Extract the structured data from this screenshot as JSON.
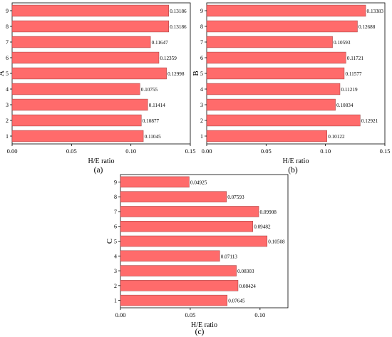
{
  "bar_color": "#ff6b6b",
  "bar_stroke": "#9a3a3a",
  "chart_data": [
    {
      "panel": "(a)",
      "type": "bar",
      "orientation": "horizontal",
      "ylabel": "A",
      "xlabel": "H/E ratio",
      "categories": [
        "1",
        "2",
        "3",
        "4",
        "5",
        "6",
        "7",
        "8",
        "9"
      ],
      "values": [
        0.11045,
        0.10877,
        0.11414,
        0.10755,
        0.12998,
        0.12359,
        0.11647,
        0.13186,
        0.13186
      ],
      "value_labels": [
        "0.11045",
        "0.10877",
        "0.11414",
        "0.10755",
        "0.12998",
        "0.12359",
        "0.11647",
        "0.13186",
        "0.13186"
      ],
      "xlim": [
        0,
        0.15
      ],
      "xticks": [
        "0.00",
        "0.05",
        "0.10",
        "0.15"
      ],
      "grid": false
    },
    {
      "panel": "(b)",
      "type": "bar",
      "orientation": "horizontal",
      "ylabel": "B",
      "xlabel": "H/E ratio",
      "categories": [
        "1",
        "2",
        "3",
        "4",
        "5",
        "6",
        "7",
        "8",
        "9"
      ],
      "values": [
        0.10122,
        0.12921,
        0.10834,
        0.11219,
        0.11577,
        0.11721,
        0.10593,
        0.12688,
        0.13383
      ],
      "value_labels": [
        "0.10122",
        "0.12921",
        "0.10834",
        "0.11219",
        "0.11577",
        "0.11721",
        "0.10593",
        "0.12688",
        "0.13383"
      ],
      "xlim": [
        0,
        0.15
      ],
      "xticks": [
        "0.00",
        "0.05",
        "0.10",
        "0.15"
      ],
      "grid": false
    },
    {
      "panel": "(c)",
      "type": "bar",
      "orientation": "horizontal",
      "ylabel": "C",
      "xlabel": "H/E ratio",
      "categories": [
        "1",
        "2",
        "3",
        "4",
        "5",
        "6",
        "7",
        "8",
        "9"
      ],
      "values": [
        0.07645,
        0.08424,
        0.08303,
        0.07113,
        0.10508,
        0.09482,
        0.09908,
        0.07593,
        0.04925
      ],
      "value_labels": [
        "0.07645",
        "0.08424",
        "0.08303",
        "0.07113",
        "0.10508",
        "0.09482",
        "0.09908",
        "0.07593",
        "0.04925"
      ],
      "xlim": [
        0,
        0.12
      ],
      "xticks": [
        "0.00",
        "0.05",
        "0.10"
      ],
      "grid": false
    }
  ]
}
